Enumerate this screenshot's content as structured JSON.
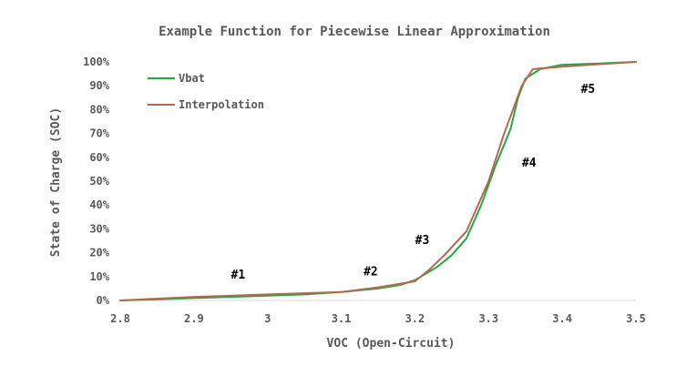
{
  "chart_data": {
    "type": "line",
    "title": "Example Function for Piecewise Linear Approximation",
    "xlabel": "VOC (Open-Circuit)",
    "ylabel": "State of Charge (SOC)",
    "xlim": [
      2.8,
      3.5
    ],
    "ylim": [
      0,
      100
    ],
    "x_ticks": [
      "2.8",
      "2.9",
      "3",
      "3.1",
      "3.2",
      "3.3",
      "3.4",
      "3.5"
    ],
    "y_ticks": [
      "0%",
      "10%",
      "20%",
      "30%",
      "40%",
      "50%",
      "60%",
      "70%",
      "80%",
      "90%",
      "100%"
    ],
    "grid": false,
    "legend_position": "top-left",
    "series": [
      {
        "name": "Vbat",
        "color": "#22a84a",
        "points": [
          [
            2.8,
            0
          ],
          [
            2.85,
            0.5
          ],
          [
            2.9,
            1.0
          ],
          [
            2.95,
            1.5
          ],
          [
            3.0,
            2.0
          ],
          [
            3.05,
            2.5
          ],
          [
            3.1,
            3.5
          ],
          [
            3.15,
            5.0
          ],
          [
            3.18,
            6.5
          ],
          [
            3.2,
            8.5
          ],
          [
            3.23,
            14
          ],
          [
            3.25,
            19
          ],
          [
            3.27,
            26
          ],
          [
            3.29,
            40
          ],
          [
            3.31,
            57
          ],
          [
            3.33,
            72
          ],
          [
            3.34,
            85
          ],
          [
            3.35,
            93
          ],
          [
            3.37,
            97
          ],
          [
            3.4,
            98.8
          ],
          [
            3.45,
            99.3
          ],
          [
            3.5,
            100
          ]
        ]
      },
      {
        "name": "Interpolation",
        "color": "#b06a4c",
        "points": [
          [
            2.8,
            0
          ],
          [
            2.9,
            1.5
          ],
          [
            3.0,
            2.5
          ],
          [
            3.1,
            3.5
          ],
          [
            3.15,
            5.5
          ],
          [
            3.2,
            8.0
          ],
          [
            3.22,
            13
          ],
          [
            3.24,
            19
          ],
          [
            3.27,
            29
          ],
          [
            3.3,
            50
          ],
          [
            3.32,
            69
          ],
          [
            3.345,
            90
          ],
          [
            3.36,
            97
          ],
          [
            3.4,
            98
          ],
          [
            3.5,
            100
          ]
        ]
      }
    ],
    "annotations": [
      {
        "label": "#1",
        "x": 2.96,
        "y": 11
      },
      {
        "label": "#2",
        "x": 3.14,
        "y": 12.5
      },
      {
        "label": "#3",
        "x": 3.21,
        "y": 25.5
      },
      {
        "label": "#4",
        "x": 3.355,
        "y": 58
      },
      {
        "label": "#5",
        "x": 3.435,
        "y": 89
      }
    ]
  }
}
